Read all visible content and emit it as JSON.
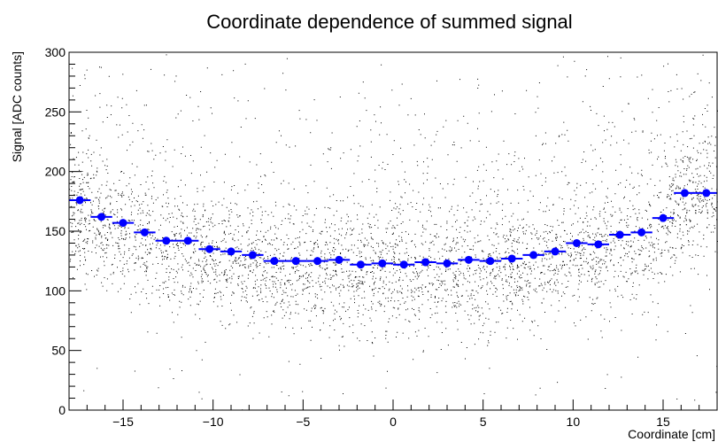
{
  "chart_data": {
    "type": "scatter",
    "title": "Coordinate dependence of summed signal",
    "xlabel": "Coordinate [cm]",
    "ylabel": "Signal [ADC counts]",
    "xlim": [
      -18,
      18
    ],
    "ylim": [
      0,
      300
    ],
    "x_ticks": [
      -15,
      -10,
      -5,
      0,
      5,
      10,
      15
    ],
    "y_ticks": [
      0,
      50,
      100,
      150,
      200,
      250,
      300
    ],
    "grid": false,
    "colors": {
      "scatter": "#000000",
      "profile": "#0000ff"
    },
    "series": [
      {
        "kind": "scatter-cloud",
        "approx_points": 12000,
        "note_values": "dense band following profile, most points 90-200 ADC, sparse tail to 300"
      },
      {
        "kind": "profile",
        "bin_width": 1.2,
        "x": [
          -17.4,
          -16.2,
          -15.0,
          -13.8,
          -12.6,
          -11.4,
          -10.2,
          -9.0,
          -7.8,
          -6.6,
          -5.4,
          -4.2,
          -3.0,
          -1.8,
          -0.6,
          0.6,
          1.8,
          3.0,
          4.2,
          5.4,
          6.6,
          7.8,
          9.0,
          10.2,
          11.4,
          12.6,
          13.8,
          15.0,
          16.2,
          17.4
        ],
        "y": [
          176,
          162,
          157,
          149,
          142,
          142,
          135,
          133,
          130,
          125,
          125,
          125,
          126,
          122,
          123,
          122,
          124,
          123,
          126,
          125,
          127,
          130,
          133,
          140,
          139,
          147,
          149,
          161,
          182,
          182
        ]
      }
    ]
  }
}
